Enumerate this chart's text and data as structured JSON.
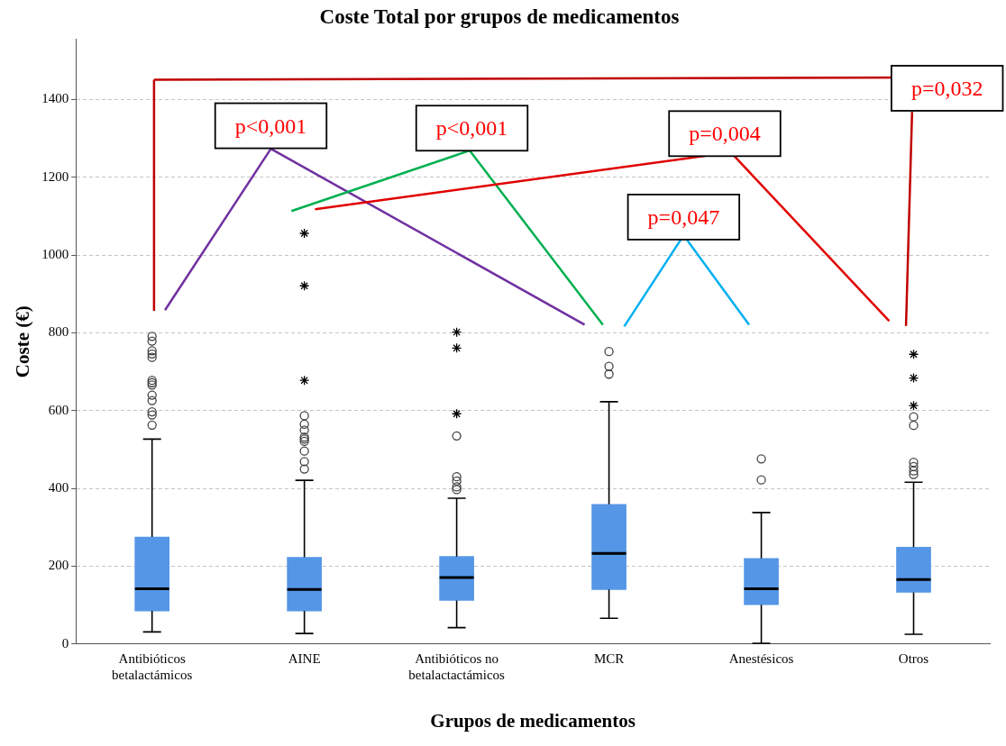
{
  "chart_data": {
    "type": "box",
    "title": "Coste Total por grupos de medicamentos",
    "xlabel": "Grupos de medicamentos",
    "ylabel": "Coste (€)",
    "categories": [
      "Antibióticos betalactámicos",
      "AINE",
      "Antibióticos no betalactactámicos",
      "MCR",
      "Anestésicos",
      "Otros"
    ],
    "series": [
      {
        "color": "#5596e6",
        "boxes": [
          {
            "low": 31,
            "q1": 85,
            "median": 142,
            "q3": 275,
            "high": 527,
            "outliers": [
              791,
              779,
              754,
              746,
              737,
              678,
              672,
              666,
              640,
              626,
              597,
              589,
              563
            ]
          },
          {
            "low": 27,
            "q1": 85,
            "median": 140,
            "q3": 223,
            "high": 421,
            "outliers": [
              587,
              565,
              550,
              532,
              527,
              521,
              496,
              469,
              450
            ]
          },
          {
            "low": 42,
            "q1": 112,
            "median": 171,
            "q3": 225,
            "high": 375,
            "outliers": [
              535,
              430,
              419,
              404,
              397
            ]
          },
          {
            "low": 66,
            "q1": 140,
            "median": 233,
            "q3": 359,
            "high": 623,
            "outliers": [
              752,
              714,
              694
            ]
          },
          {
            "low": 2,
            "q1": 101,
            "median": 142,
            "q3": 220,
            "high": 338,
            "outliers": [
              476,
              422
            ]
          },
          {
            "low": 25,
            "q1": 133,
            "median": 166,
            "q3": 249,
            "high": 416,
            "outliers": [
              584,
              562,
              467,
              456,
              445,
              436
            ]
          }
        ]
      },
      {
        "type": "scatter",
        "marker": "cross",
        "color": "#000000",
        "x": [
          "AINE",
          "AINE",
          "AINE",
          "Antibióticos no betalactactámicos",
          "Antibióticos no betalactactámicos",
          "Antibióticos no betalactactámicos",
          "Otros",
          "Otros",
          "Otros"
        ],
        "values": [
          1056,
          921,
          678,
          802,
          761,
          592,
          745,
          684,
          613
        ]
      }
    ],
    "ylim": [
      0,
      1555
    ],
    "yticks": [
      0,
      200,
      400,
      600,
      800,
      1000,
      1200,
      1400
    ],
    "grid": "y",
    "annotations": [
      "p<0,001",
      "p<0,001",
      "p=0,004",
      "p=0,047",
      "p=0,032"
    ]
  }
}
